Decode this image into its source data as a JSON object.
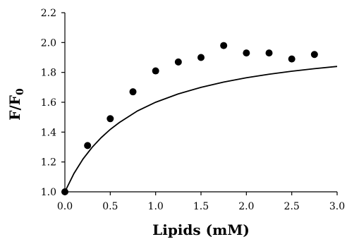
{
  "chart_data": {
    "type": "scatter",
    "xlabel": "Lipids (mM)",
    "ylabel_main": "F/F",
    "ylabel_sub": "0",
    "xlim": [
      0.0,
      3.0
    ],
    "ylim": [
      1.0,
      2.2
    ],
    "x_ticks": [
      "0.0",
      "0.5",
      "1.0",
      "1.5",
      "2.0",
      "2.5",
      "3.0"
    ],
    "y_ticks": [
      "1.0",
      "1.2",
      "1.4",
      "1.6",
      "1.8",
      "2.0",
      "2.2"
    ],
    "grid": false,
    "series": [
      {
        "kind": "points",
        "x": [
          0.0,
          0.25,
          0.5,
          0.75,
          1.0,
          1.25,
          1.5,
          1.75,
          2.0,
          2.25,
          2.5,
          2.75
        ],
        "y": [
          1.0,
          1.31,
          1.49,
          1.67,
          1.81,
          1.87,
          1.9,
          1.98,
          1.93,
          1.93,
          1.89,
          1.92
        ]
      },
      {
        "kind": "fitted-curve",
        "x": [
          0.0,
          0.1,
          0.2,
          0.3,
          0.4,
          0.5,
          0.6,
          0.8,
          1.0,
          1.25,
          1.5,
          1.75,
          2.0,
          2.25,
          2.5,
          2.75,
          3.0
        ],
        "y": [
          1.0,
          1.123,
          1.22,
          1.298,
          1.363,
          1.418,
          1.464,
          1.542,
          1.6,
          1.656,
          1.7,
          1.735,
          1.764,
          1.788,
          1.808,
          1.825,
          1.84
        ]
      }
    ],
    "colors": {
      "marker": "#000000",
      "line": "#000000"
    }
  }
}
